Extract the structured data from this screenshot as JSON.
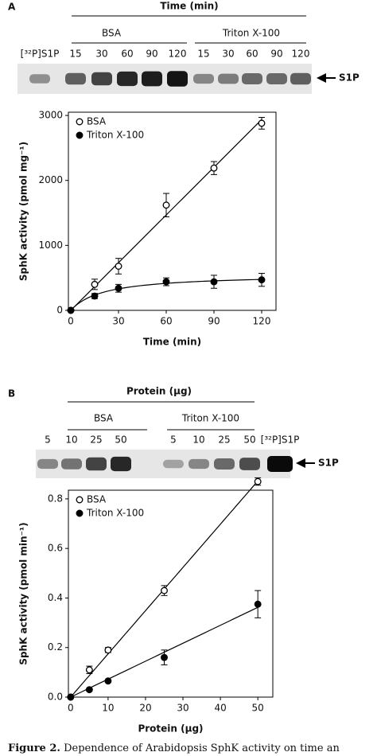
{
  "panels": [
    {
      "label": "A",
      "gel": {
        "header": "Time (min)",
        "groups": [
          "BSA",
          "Triton X-100"
        ],
        "lanes": [
          "[³²P]S1P",
          "15",
          "30",
          "60",
          "90",
          "120",
          "15",
          "30",
          "60",
          "90",
          "120"
        ],
        "band_label": "S1P"
      }
    },
    {
      "label": "B",
      "gel": {
        "header": "Protein (µg)",
        "groups": [
          "BSA",
          "Triton X-100"
        ],
        "lanes": [
          "5",
          "10",
          "25",
          "50",
          "5",
          "10",
          "25",
          "50",
          "[³²P]S1P"
        ],
        "band_label": "S1P"
      }
    }
  ],
  "chart_data": [
    {
      "type": "scatter",
      "x_label": "Time (min)",
      "y_label": "SphK activity (pmol mg⁻¹)",
      "x": [
        0,
        15,
        30,
        60,
        90,
        120
      ],
      "series": [
        {
          "name": "BSA",
          "color": "#000000",
          "filled": false,
          "fit": "linear",
          "values": [
            0,
            400,
            680,
            1620,
            2190,
            2880
          ],
          "errors": [
            0,
            80,
            120,
            180,
            100,
            90
          ]
        },
        {
          "name": "Triton X-100",
          "color": "#000000",
          "filled": true,
          "fit": "saturation",
          "values": [
            0,
            220,
            340,
            440,
            440,
            470
          ],
          "errors": [
            0,
            40,
            60,
            60,
            100,
            100
          ]
        }
      ],
      "xlim": [
        -1.5,
        129
      ],
      "ylim": [
        0,
        3050
      ],
      "xticks": [
        0,
        30,
        60,
        90,
        120
      ],
      "yticks": [
        0,
        1000,
        2000,
        3000
      ],
      "grid": false,
      "legend": "upper left"
    },
    {
      "type": "scatter",
      "x_label": "Protein (µg)",
      "y_label": "SphK activity (pmol min⁻¹)",
      "x": [
        0,
        5,
        10,
        25,
        50
      ],
      "series": [
        {
          "name": "BSA",
          "color": "#000000",
          "filled": false,
          "fit": "linear",
          "values": [
            0,
            0.11,
            0.19,
            0.43,
            0.87
          ],
          "errors": [
            0,
            0.015,
            0.01,
            0.02,
            0.015
          ]
        },
        {
          "name": "Triton X-100",
          "color": "#000000",
          "filled": true,
          "fit": "linear",
          "values": [
            0,
            0.03,
            0.065,
            0.16,
            0.375
          ],
          "errors": [
            0,
            0,
            0,
            0.03,
            0.055
          ]
        }
      ],
      "xlim": [
        -0.6,
        54
      ],
      "ylim": [
        0,
        0.835
      ],
      "xticks": [
        0,
        10,
        20,
        30,
        40,
        50
      ],
      "yticks": [
        {
          "value": 0,
          "label": "0.0"
        },
        0.2,
        0.4,
        0.6,
        0.8
      ],
      "grid": false,
      "legend": "upper left"
    }
  ],
  "caption": {
    "label": "Figure 2.",
    "text": "Dependence of Arabidopsis SphK activity on time an"
  }
}
